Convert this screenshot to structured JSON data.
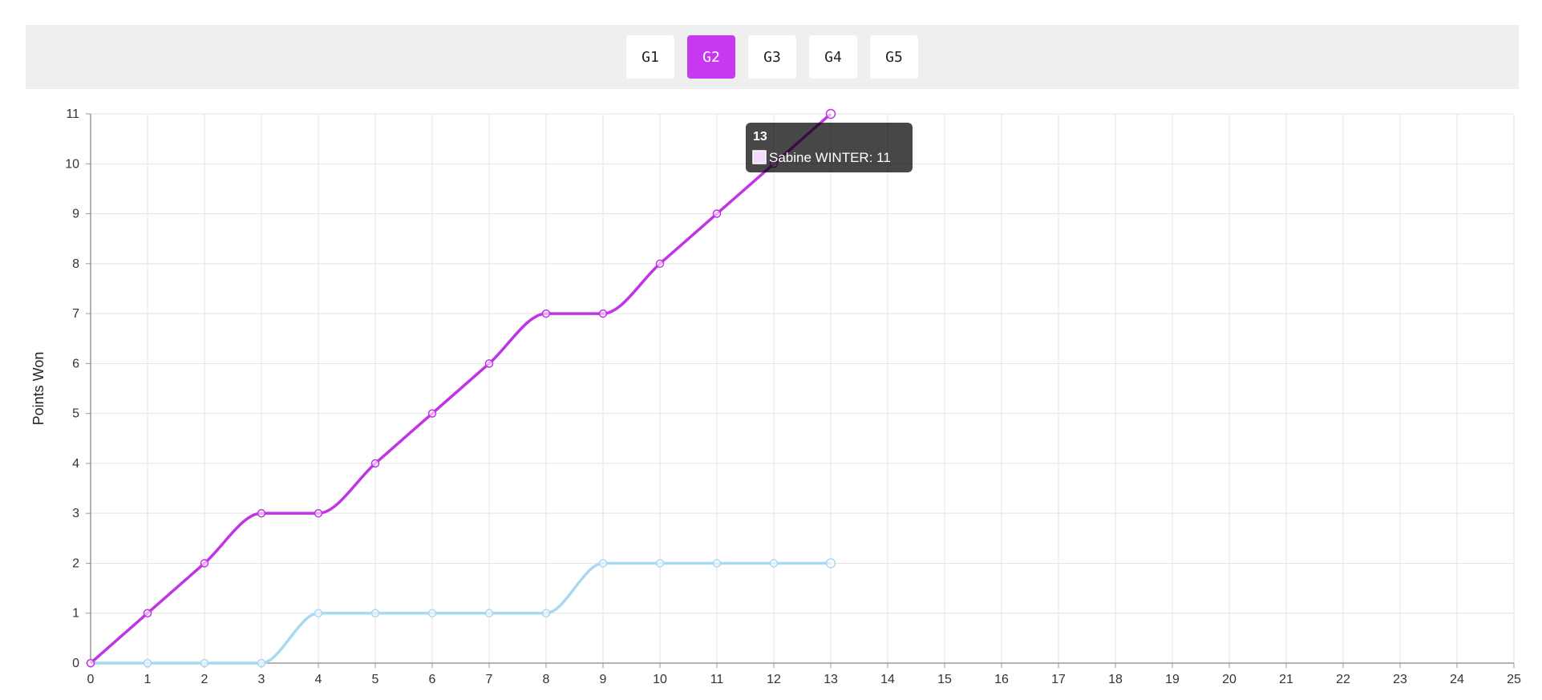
{
  "toolbar": {
    "buttons": [
      {
        "label": "G1",
        "active": false
      },
      {
        "label": "G2",
        "active": true
      },
      {
        "label": "G3",
        "active": false
      },
      {
        "label": "G4",
        "active": false
      },
      {
        "label": "G5",
        "active": false
      }
    ],
    "accent_color": "#c838f0"
  },
  "chart_data": {
    "type": "line",
    "ylabel": "Points Won",
    "xlabel": "",
    "xlim": [
      0,
      25
    ],
    "ylim": [
      0,
      11
    ],
    "x_ticks": [
      0,
      1,
      2,
      3,
      4,
      5,
      6,
      7,
      8,
      9,
      10,
      11,
      12,
      13,
      14,
      15,
      16,
      17,
      18,
      19,
      20,
      21,
      22,
      23,
      24,
      25
    ],
    "y_ticks": [
      0,
      1,
      2,
      3,
      4,
      5,
      6,
      7,
      8,
      9,
      10,
      11
    ],
    "grid": true,
    "series": [
      {
        "name": "Sabine WINTER",
        "color": "#c034e6",
        "x": [
          0,
          1,
          2,
          3,
          4,
          5,
          6,
          7,
          8,
          9,
          10,
          11,
          12,
          13
        ],
        "values": [
          0,
          1,
          2,
          3,
          3,
          4,
          5,
          6,
          7,
          7,
          8,
          9,
          10,
          11
        ]
      },
      {
        "color": "#a8d8f2",
        "x": [
          0,
          1,
          2,
          3,
          4,
          5,
          6,
          7,
          8,
          9,
          10,
          11,
          12,
          13
        ],
        "values": [
          0,
          0,
          0,
          0,
          1,
          1,
          1,
          1,
          1,
          2,
          2,
          2,
          2,
          2
        ]
      }
    ],
    "tooltip": {
      "title": "13",
      "text": "Sabine WINTER: 11",
      "x": 13,
      "y": 11
    }
  }
}
